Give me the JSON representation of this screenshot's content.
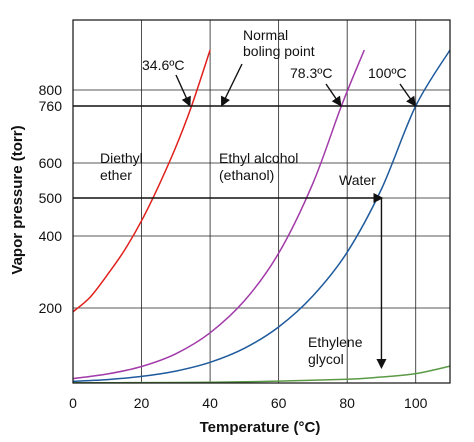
{
  "chart_data": {
    "type": "line",
    "xlabel": "Temperature (°C)",
    "ylabel": "Vapor pressure (torr)",
    "xlim": [
      0,
      110
    ],
    "ylim": [
      0,
      900
    ],
    "x_ticks": [
      0,
      20,
      40,
      60,
      80,
      100
    ],
    "y_ticks": [
      200,
      400,
      500,
      600,
      760,
      800
    ],
    "grid": true,
    "series": [
      {
        "name": "Diethyl ether",
        "color": "#e0201c",
        "x": [
          0,
          5,
          10,
          15,
          20,
          25,
          30,
          34.6,
          40
        ],
        "y": [
          190,
          230,
          292,
          360,
          440,
          535,
          645,
          760,
          900
        ]
      },
      {
        "name": "Ethyl alcohol (ethanol)",
        "color": "#a13aa8",
        "x": [
          0,
          10,
          20,
          30,
          40,
          50,
          60,
          70,
          78.3,
          85
        ],
        "y": [
          12,
          24,
          44,
          78,
          134,
          220,
          352,
          542,
          760,
          900
        ]
      },
      {
        "name": "Water",
        "color": "#1e5a9c",
        "x": [
          0,
          10,
          20,
          30,
          40,
          50,
          60,
          70,
          80,
          90,
          100,
          110
        ],
        "y": [
          4.6,
          9.2,
          17.5,
          31.8,
          55.3,
          92.5,
          149.4,
          233.7,
          355.1,
          525.8,
          760,
          900
        ]
      },
      {
        "name": "Ethylene glycol",
        "color": "#5b9a45",
        "x": [
          0,
          20,
          40,
          60,
          80,
          90,
          100,
          110
        ],
        "y": [
          0.5,
          1,
          2,
          5,
          10,
          16,
          25,
          45
        ]
      }
    ],
    "reference_line": {
      "y": 760,
      "label": "Normal boling point"
    },
    "annotations": [
      {
        "text": "34.6ºC",
        "x": 34.6,
        "y": 760
      },
      {
        "text": "78.3ºC",
        "x": 78.3,
        "y": 760
      },
      {
        "text": "100ºC",
        "x": 100,
        "y": 760
      }
    ],
    "series_labels": {
      "diethyl": [
        "Diethyl",
        "ether"
      ],
      "ethanol": [
        "Ethyl alcohol",
        "(ethanol)"
      ],
      "water": [
        "Water"
      ],
      "glycol": [
        "Ethylene",
        "glycol"
      ]
    },
    "reading_guide": {
      "y": 500,
      "x": 90
    }
  }
}
